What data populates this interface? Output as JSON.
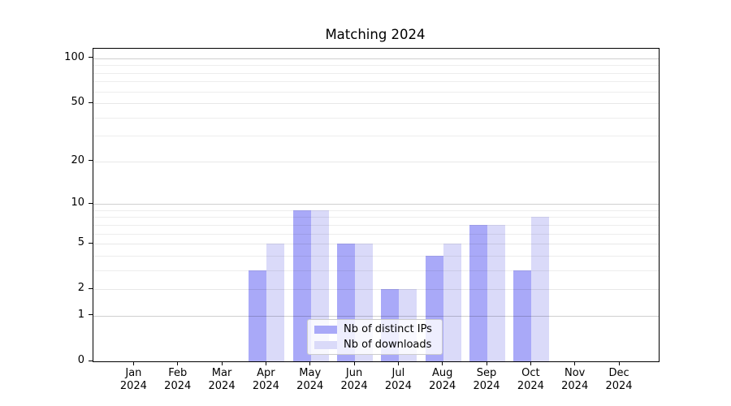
{
  "chart_data": {
    "type": "bar",
    "title": "Matching 2024",
    "categories": [
      "Jan 2024",
      "Feb 2024",
      "Mar 2024",
      "Apr 2024",
      "May 2024",
      "Jun 2024",
      "Jul 2024",
      "Aug 2024",
      "Sep 2024",
      "Oct 2024",
      "Nov 2024",
      "Dec 2024"
    ],
    "x_tick_months": [
      "Jan",
      "Feb",
      "Mar",
      "Apr",
      "May",
      "Jun",
      "Jul",
      "Aug",
      "Sep",
      "Oct",
      "Nov",
      "Dec"
    ],
    "x_tick_year": "2024",
    "series": [
      {
        "name": "Nb of distinct IPs",
        "color": "#a9a9f8",
        "values": [
          0,
          0,
          0,
          3,
          9,
          5,
          2,
          4,
          7,
          3,
          0,
          0
        ]
      },
      {
        "name": "Nb of downloads",
        "color": "#dadaf9",
        "values": [
          0,
          0,
          0,
          5,
          9,
          5,
          2,
          5,
          7,
          8,
          0,
          0
        ]
      }
    ],
    "yscale": "log1p",
    "ylim": [
      0,
      116
    ],
    "yticks": [
      0,
      1,
      2,
      5,
      10,
      20,
      50,
      100
    ],
    "major_gridlines": [
      1,
      10,
      100
    ],
    "labeled_minor_gridlines": [
      2,
      5,
      20,
      50
    ],
    "minor_gridlines": [
      3,
      4,
      6,
      7,
      8,
      9,
      30,
      40,
      60,
      70,
      80,
      90
    ],
    "grid": true,
    "legend_position": "lower center",
    "style": {
      "background": "#ffffff",
      "spine_color": "#000000",
      "major_grid_color": "#d0d0d0",
      "minor_grid_color": "#ececec",
      "legend_border_color": "#cccccc"
    }
  }
}
